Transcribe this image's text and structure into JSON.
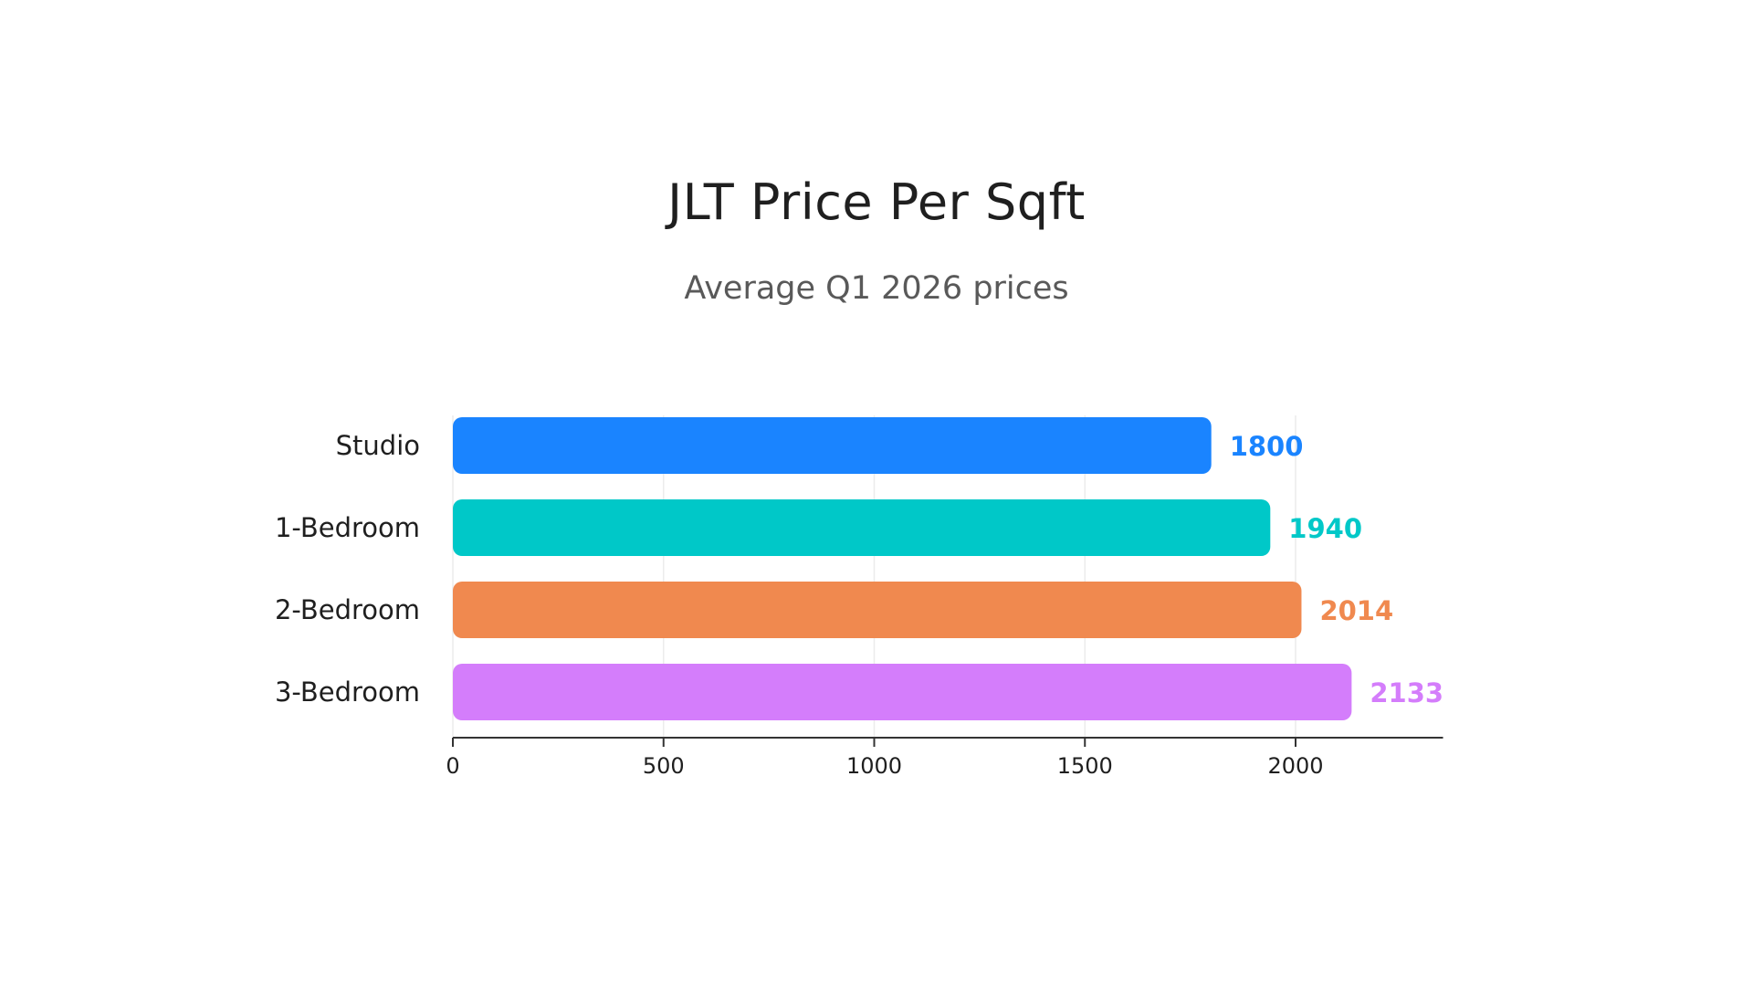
{
  "chart_data": {
    "type": "bar",
    "orientation": "horizontal",
    "title": "JLT Price Per Sqft",
    "subtitle": "Average Q1 2026 prices",
    "categories": [
      "Studio",
      "1-Bedroom",
      "2-Bedroom",
      "3-Bedroom"
    ],
    "values": [
      1800,
      1940,
      2014,
      2133
    ],
    "value_labels": [
      "1800",
      "1940",
      "2014",
      "2133"
    ],
    "colors": [
      "#1a84ff",
      "#00c8c8",
      "#f0894f",
      "#d47dfb"
    ],
    "xlabel": "",
    "ylabel": "",
    "xlim": [
      0,
      2350
    ],
    "xticks": [
      0,
      500,
      1000,
      1500,
      2000
    ],
    "xtick_labels": [
      "0",
      "500",
      "1000",
      "1500",
      "2000"
    ],
    "grid": true,
    "legend": "none"
  }
}
